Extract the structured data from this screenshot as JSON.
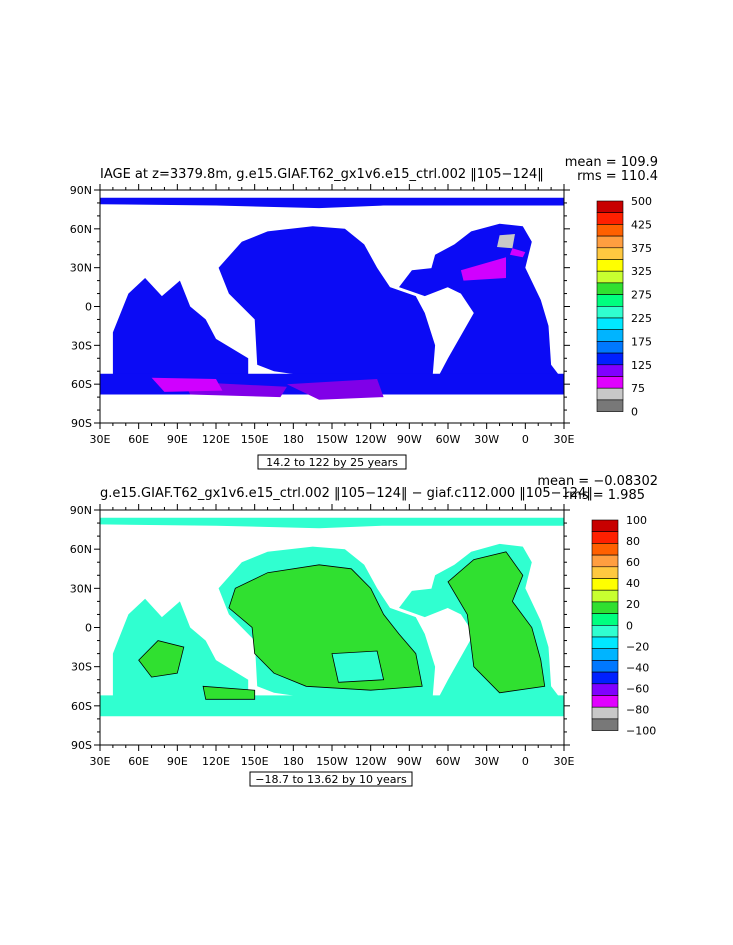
{
  "panels": [
    {
      "title": "IAGE at z=3379.8m, g.e15.GIAF.T62_gx1v6.e15_ctrl.002 ‖105−124‖",
      "mean_text": "mean = 109.9",
      "rms_text": "rms = 110.4",
      "range_text": "14.2 to 122 by 25 years",
      "lat_labels": [
        "90N",
        "60N",
        "30N",
        "0",
        "30S",
        "60S",
        "90S"
      ],
      "lon_labels": [
        "30E",
        "60E",
        "90E",
        "120E",
        "150E",
        "180",
        "150W",
        "120W",
        "90W",
        "60W",
        "30W",
        "0",
        "30E"
      ],
      "legend_labels": [
        "500",
        "425",
        "375",
        "325",
        "275",
        "225",
        "175",
        "125",
        "75",
        "0"
      ],
      "legend_colors": [
        "#c80000",
        "#ff2000",
        "#ff6000",
        "#ff9e40",
        "#ffc840",
        "#ffff00",
        "#c8ff30",
        "#30e030",
        "#00ff7f",
        "#30ffd0",
        "#00e8ff",
        "#00b4ff",
        "#0078ff",
        "#0020ff",
        "#8000ff",
        "#e000ff",
        "#c8c8c8",
        "#787878"
      ]
    },
    {
      "title": "g.e15.GIAF.T62_gx1v6.e15_ctrl.002 ‖105−124‖ − giaf.c112.000 ‖105−124‖",
      "mean_text": "mean = −0.08302",
      "rms_text": "rms = 1.985",
      "range_text": "−18.7 to 13.62 by 10 years",
      "lat_labels": [
        "90N",
        "60N",
        "30N",
        "0",
        "30S",
        "60S",
        "90S"
      ],
      "lon_labels": [
        "30E",
        "60E",
        "90E",
        "120E",
        "150E",
        "180",
        "150W",
        "120W",
        "90W",
        "60W",
        "30W",
        "0",
        "30E"
      ],
      "legend_labels": [
        "100",
        "80",
        "60",
        "40",
        "20",
        "0",
        "−20",
        "−40",
        "−60",
        "−80",
        "−100"
      ],
      "legend_colors": [
        "#c80000",
        "#ff2000",
        "#ff6000",
        "#ff9e40",
        "#ffc840",
        "#ffff00",
        "#c8ff30",
        "#30e030",
        "#00ff7f",
        "#30ffd0",
        "#00e8ff",
        "#00b4ff",
        "#0078ff",
        "#0020ff",
        "#8000ff",
        "#e000ff",
        "#c8c8c8",
        "#787878"
      ]
    }
  ],
  "colors": {
    "ocean_top": "#0b0bf5",
    "ocean_top_south": "#8000e8",
    "ocean_top_magenta": "#d000ff",
    "ocean_top_gray": "#c8c8c8",
    "ocean_bottom": "#30ffd0",
    "ocean_bottom_green": "#30e030"
  }
}
